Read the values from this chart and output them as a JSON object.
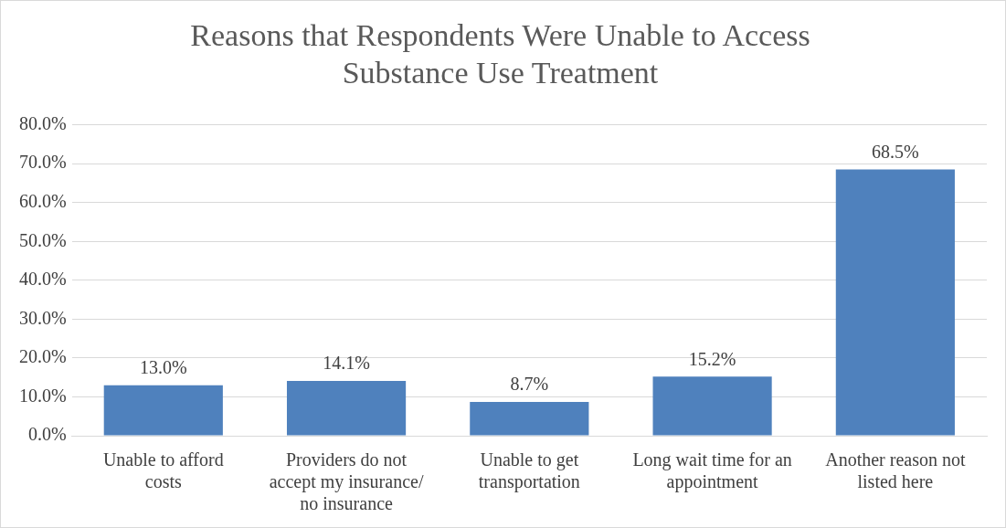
{
  "chart_data": {
    "type": "bar",
    "title": "Reasons that Respondents Were Unable to Access Substance Use Treatment",
    "categories": [
      "Unable to afford costs",
      "Providers do not accept my insurance/ no insurance",
      "Unable to get transportation",
      "Long wait time for an appointment",
      "Another reason not listed here"
    ],
    "values": [
      13.0,
      14.1,
      8.7,
      15.2,
      68.5
    ],
    "value_labels": [
      "13.0%",
      "14.1%",
      "8.7%",
      "15.2%",
      "68.5%"
    ],
    "color": "#4f81bd",
    "ylim": [
      0,
      80
    ],
    "yticks": [
      {
        "value": 0,
        "label": "0.0%"
      },
      {
        "value": 10,
        "label": "10.0%"
      },
      {
        "value": 20,
        "label": "20.0%"
      },
      {
        "value": 30,
        "label": "30.0%"
      },
      {
        "value": 40,
        "label": "40.0%"
      },
      {
        "value": 50,
        "label": "50.0%"
      },
      {
        "value": 60,
        "label": "60.0%"
      },
      {
        "value": 70,
        "label": "70.0%"
      },
      {
        "value": 80,
        "label": "80.0%"
      }
    ],
    "grid": true,
    "legend": false
  }
}
